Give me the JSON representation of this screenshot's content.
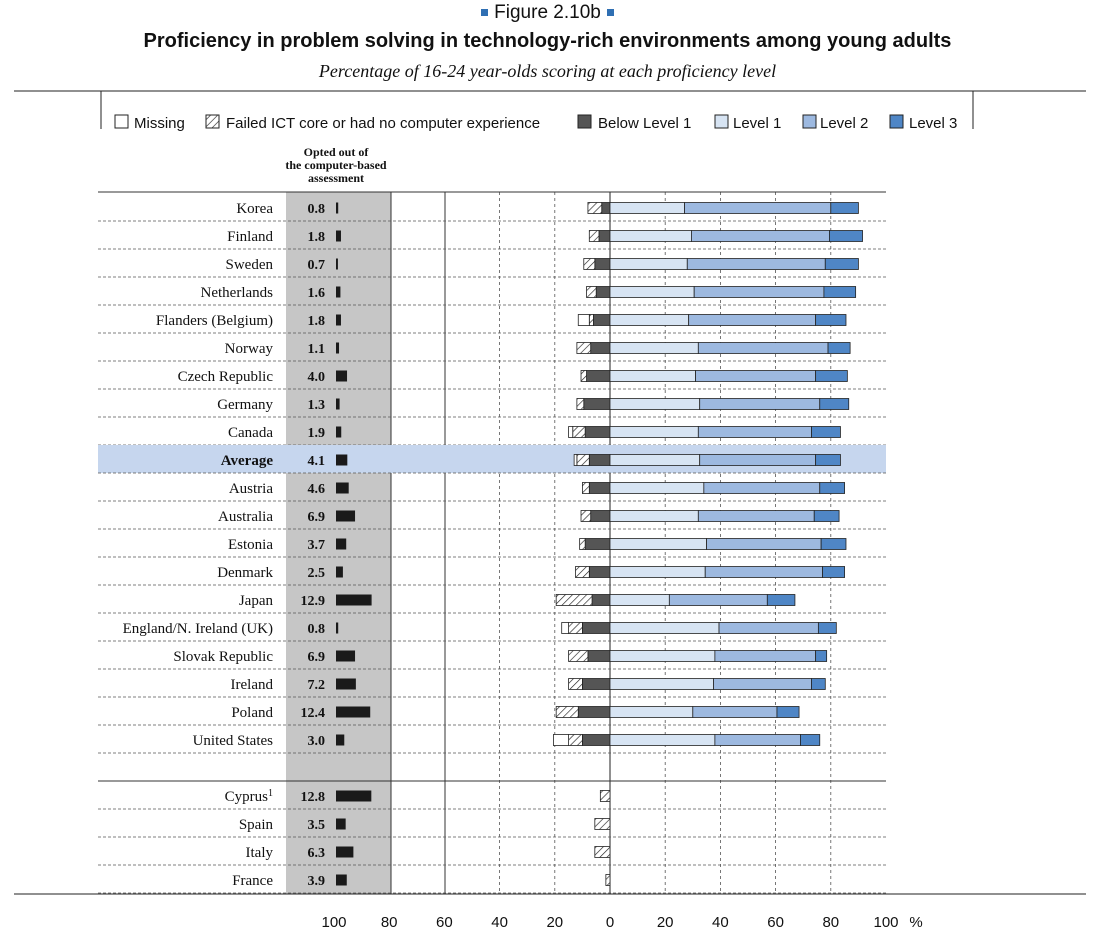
{
  "figure_label": "Figure 2.10b",
  "colors": {
    "missing": "#ffffff",
    "below_level_1": "#555555",
    "level_1": "#d7e4f3",
    "level_2": "#9db9e0",
    "level_3": "#4f86c6",
    "opt_out_bar": "#1a1a1a",
    "opt_out_band": "#c6c6c6",
    "highlight_row": "#c6d6ee"
  },
  "chart_data": {
    "type": "bar",
    "subtype": "diverging-stacked-horizontal",
    "title": "Proficiency in problem solving in technology-rich environments among young adults",
    "subtitle": "Percentage of 16-24 year-olds scoring at each proficiency level",
    "legend": [
      "Missing",
      "Failed ICT core or had no computer experience",
      "Below Level 1",
      "Level 1",
      "Level 2",
      "Level 3"
    ],
    "legend_placement": "top",
    "opt_out_header": "Opted out of the computer-based assessment",
    "opt_out_axis_ticks": [
      "100",
      "80"
    ],
    "main_axis_ticks": [
      "60",
      "40",
      "20",
      "0",
      "20",
      "40",
      "60",
      "80",
      "100"
    ],
    "axis_unit": "%",
    "highlight_row": "Average",
    "rows": [
      {
        "country": "Korea",
        "sup": "",
        "opted_out": 0.8,
        "missing": 0.0,
        "failed": 5.0,
        "below1": 3.0,
        "level1": 27.0,
        "level2": 53.0,
        "level3": 10.0
      },
      {
        "country": "Finland",
        "sup": "",
        "opted_out": 1.8,
        "missing": 0.0,
        "failed": 3.5,
        "below1": 4.0,
        "level1": 29.5,
        "level2": 50.0,
        "level3": 12.0
      },
      {
        "country": "Sweden",
        "sup": "",
        "opted_out": 0.7,
        "missing": 0.0,
        "failed": 4.0,
        "below1": 5.5,
        "level1": 28.0,
        "level2": 50.0,
        "level3": 12.0
      },
      {
        "country": "Netherlands",
        "sup": "",
        "opted_out": 1.6,
        "missing": 0.0,
        "failed": 3.5,
        "below1": 5.0,
        "level1": 30.5,
        "level2": 47.0,
        "level3": 11.5
      },
      {
        "country": "Flanders (Belgium)",
        "sup": "",
        "opted_out": 1.8,
        "missing": 4.0,
        "failed": 1.5,
        "below1": 6.0,
        "level1": 28.5,
        "level2": 46.0,
        "level3": 11.0
      },
      {
        "country": "Norway",
        "sup": "",
        "opted_out": 1.1,
        "missing": 0.0,
        "failed": 5.0,
        "below1": 7.0,
        "level1": 32.0,
        "level2": 47.0,
        "level3": 8.0
      },
      {
        "country": "Czech Republic",
        "sup": "",
        "opted_out": 4.0,
        "missing": 0.0,
        "failed": 2.0,
        "below1": 8.5,
        "level1": 31.0,
        "level2": 43.5,
        "level3": 11.5
      },
      {
        "country": "Germany",
        "sup": "",
        "opted_out": 1.3,
        "missing": 0.0,
        "failed": 2.5,
        "below1": 9.5,
        "level1": 32.5,
        "level2": 43.5,
        "level3": 10.5
      },
      {
        "country": "Canada",
        "sup": "",
        "opted_out": 1.9,
        "missing": 1.5,
        "failed": 4.5,
        "below1": 9.0,
        "level1": 32.0,
        "level2": 41.0,
        "level3": 10.5
      },
      {
        "country": "Average",
        "sup": "",
        "opted_out": 4.1,
        "missing": 1.0,
        "failed": 4.5,
        "below1": 7.5,
        "level1": 32.5,
        "level2": 42.0,
        "level3": 9.0
      },
      {
        "country": "Austria",
        "sup": "",
        "opted_out": 4.6,
        "missing": 0.0,
        "failed": 2.5,
        "below1": 7.5,
        "level1": 34.0,
        "level2": 42.0,
        "level3": 9.0
      },
      {
        "country": "Australia",
        "sup": "",
        "opted_out": 6.9,
        "missing": 0.0,
        "failed": 3.5,
        "below1": 7.0,
        "level1": 32.0,
        "level2": 42.0,
        "level3": 9.0
      },
      {
        "country": "Estonia",
        "sup": "",
        "opted_out": 3.7,
        "missing": 0.0,
        "failed": 2.0,
        "below1": 9.0,
        "level1": 35.0,
        "level2": 41.5,
        "level3": 9.0
      },
      {
        "country": "Denmark",
        "sup": "",
        "opted_out": 2.5,
        "missing": 0.0,
        "failed": 5.0,
        "below1": 7.5,
        "level1": 34.5,
        "level2": 42.5,
        "level3": 8.0
      },
      {
        "country": "Japan",
        "sup": "",
        "opted_out": 12.9,
        "missing": 0.0,
        "failed": 13.0,
        "below1": 6.5,
        "level1": 21.5,
        "level2": 35.5,
        "level3": 10.0
      },
      {
        "country": "England/N. Ireland (UK)",
        "sup": "",
        "opted_out": 0.8,
        "missing": 2.5,
        "failed": 5.0,
        "below1": 10.0,
        "level1": 39.5,
        "level2": 36.0,
        "level3": 6.5
      },
      {
        "country": "Slovak Republic",
        "sup": "",
        "opted_out": 6.9,
        "missing": 0.0,
        "failed": 7.0,
        "below1": 8.0,
        "level1": 38.0,
        "level2": 36.5,
        "level3": 4.0
      },
      {
        "country": "Ireland",
        "sup": "",
        "opted_out": 7.2,
        "missing": 0.0,
        "failed": 5.0,
        "below1": 10.0,
        "level1": 37.5,
        "level2": 35.5,
        "level3": 5.0
      },
      {
        "country": "Poland",
        "sup": "",
        "opted_out": 12.4,
        "missing": 0.0,
        "failed": 8.0,
        "below1": 11.5,
        "level1": 30.0,
        "level2": 30.5,
        "level3": 8.0
      },
      {
        "country": "United States",
        "sup": "",
        "opted_out": 3.0,
        "missing": 5.5,
        "failed": 5.0,
        "below1": 10.0,
        "level1": 38.0,
        "level2": 31.0,
        "level3": 7.0
      },
      {
        "country": "Cyprus",
        "sup": "1",
        "opted_out": 12.8,
        "missing": 0.0,
        "failed": 3.5,
        "below1": 0.0,
        "level1": 0.0,
        "level2": 0.0,
        "level3": 0.0
      },
      {
        "country": "Spain",
        "sup": "",
        "opted_out": 3.5,
        "missing": 0.0,
        "failed": 5.5,
        "below1": 0.0,
        "level1": 0.0,
        "level2": 0.0,
        "level3": 0.0
      },
      {
        "country": "Italy",
        "sup": "",
        "opted_out": 6.3,
        "missing": 0.0,
        "failed": 5.5,
        "below1": 0.0,
        "level1": 0.0,
        "level2": 0.0,
        "level3": 0.0
      },
      {
        "country": "France",
        "sup": "",
        "opted_out": 3.9,
        "missing": 0.0,
        "failed": 1.5,
        "below1": 0.0,
        "level1": 0.0,
        "level2": 0.0,
        "level3": 0.0
      }
    ]
  }
}
